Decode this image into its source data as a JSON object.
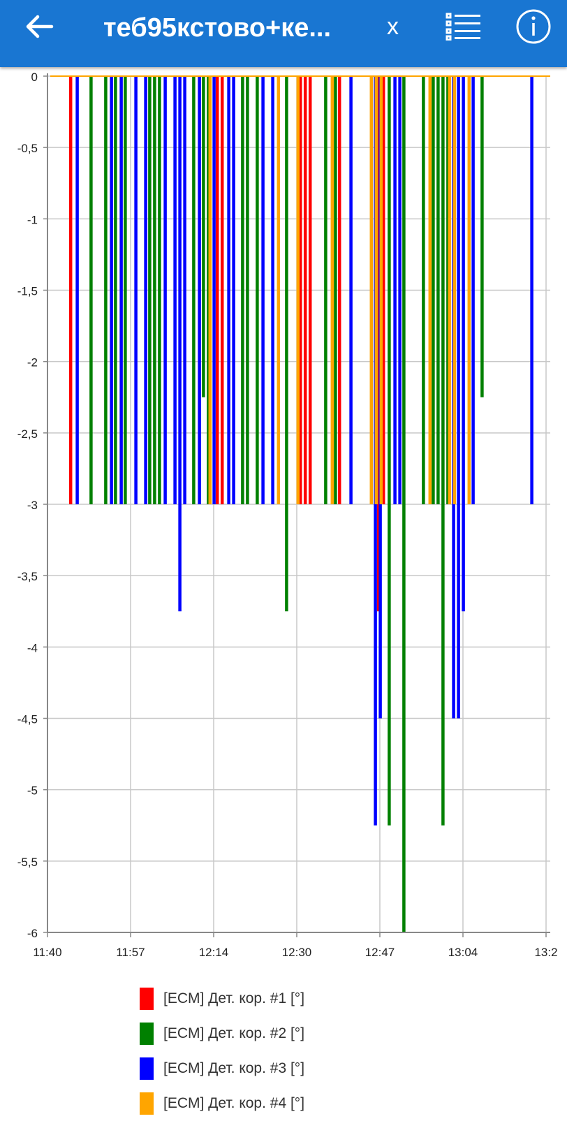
{
  "header": {
    "title": "теб95кстово+ке...",
    "back_icon": "arrow-left-icon",
    "close_label": "x",
    "list_icon": "list-checklist-icon",
    "info_icon": "info-circle-icon",
    "background_color": "#1976d2"
  },
  "chart_data": {
    "type": "bar",
    "title": "",
    "xlabel": "",
    "ylabel": "",
    "ylim": [
      -6,
      0
    ],
    "y_ticks": [
      "0",
      "-0,5",
      "-1",
      "-1,5",
      "-2",
      "-2,5",
      "-3",
      "-3,5",
      "-4",
      "-4,5",
      "-5",
      "-5,5",
      "-6"
    ],
    "x_ticks": [
      "11:40",
      "11:57",
      "12:14",
      "12:30",
      "12:47",
      "13:04",
      "13:2"
    ],
    "grid": true,
    "legend_position": "bottom",
    "series": [
      {
        "name": "[ECM] Дет. кор. #1 [°]",
        "color": "#ff0000",
        "points": [
          {
            "x": "11:45",
            "y": -3
          },
          {
            "x": "12:15",
            "y": -3
          },
          {
            "x": "12:16",
            "y": -3
          },
          {
            "x": "12:32",
            "y": -3
          },
          {
            "x": "12:33",
            "y": -3
          },
          {
            "x": "12:34",
            "y": -3
          },
          {
            "x": "12:40",
            "y": -3
          },
          {
            "x": "12:48",
            "y": -3.75
          },
          {
            "x": "12:49",
            "y": -3
          }
        ]
      },
      {
        "name": "[ECM] Дет. кор. #2 [°]",
        "color": "#008000",
        "points": [
          {
            "x": "11:49",
            "y": -3
          },
          {
            "x": "11:52",
            "y": -3
          },
          {
            "x": "11:54",
            "y": -3
          },
          {
            "x": "11:56",
            "y": -3
          },
          {
            "x": "12:01",
            "y": -3
          },
          {
            "x": "12:02",
            "y": -3
          },
          {
            "x": "12:03",
            "y": -3
          },
          {
            "x": "12:10",
            "y": -3
          },
          {
            "x": "12:12",
            "y": -2.25
          },
          {
            "x": "12:13",
            "y": -3
          },
          {
            "x": "12:20",
            "y": -3
          },
          {
            "x": "12:21",
            "y": -3
          },
          {
            "x": "12:23",
            "y": -3
          },
          {
            "x": "12:29",
            "y": -3.75
          },
          {
            "x": "12:37",
            "y": -3
          },
          {
            "x": "12:39",
            "y": -3
          },
          {
            "x": "12:50",
            "y": -5.25
          },
          {
            "x": "12:53",
            "y": -6
          },
          {
            "x": "12:57",
            "y": -3
          },
          {
            "x": "12:59",
            "y": -3
          },
          {
            "x": "13:00",
            "y": -3
          },
          {
            "x": "13:01",
            "y": -5.25
          },
          {
            "x": "13:02",
            "y": -3
          },
          {
            "x": "13:09",
            "y": -2.25
          }
        ]
      },
      {
        "name": "[ECM] Дет. кор. #3 [°]",
        "color": "#0000ff",
        "points": [
          {
            "x": "11:46",
            "y": -3
          },
          {
            "x": "11:53",
            "y": -3
          },
          {
            "x": "11:55",
            "y": -3
          },
          {
            "x": "11:58",
            "y": -3
          },
          {
            "x": "12:00",
            "y": -3
          },
          {
            "x": "12:04",
            "y": -3
          },
          {
            "x": "12:06",
            "y": -3
          },
          {
            "x": "12:07",
            "y": -3.75
          },
          {
            "x": "12:08",
            "y": -3
          },
          {
            "x": "12:11",
            "y": -3
          },
          {
            "x": "12:14",
            "y": -3
          },
          {
            "x": "12:17",
            "y": -3
          },
          {
            "x": "12:18",
            "y": -3
          },
          {
            "x": "12:24",
            "y": -3
          },
          {
            "x": "12:26",
            "y": -3
          },
          {
            "x": "12:42",
            "y": -3
          },
          {
            "x": "12:47",
            "y": -5.25
          },
          {
            "x": "12:48",
            "y": -4.5
          },
          {
            "x": "12:51",
            "y": -3
          },
          {
            "x": "12:52",
            "y": -3
          },
          {
            "x": "13:03",
            "y": -4.5
          },
          {
            "x": "13:04",
            "y": -4.5
          },
          {
            "x": "13:05",
            "y": -3.75
          },
          {
            "x": "13:07",
            "y": -3
          },
          {
            "x": "13:19",
            "y": -3
          }
        ]
      },
      {
        "name": "[ECM] Дет. кор. #4 [°]",
        "color": "#ffa500",
        "points": [
          {
            "x": "12:13",
            "y": -3
          },
          {
            "x": "12:27",
            "y": -3
          },
          {
            "x": "12:31",
            "y": -3
          },
          {
            "x": "12:38",
            "y": -3
          },
          {
            "x": "12:46",
            "y": -3
          },
          {
            "x": "12:47",
            "y": -3
          },
          {
            "x": "12:48",
            "y": -3
          },
          {
            "x": "12:58",
            "y": -3
          },
          {
            "x": "13:02",
            "y": -3
          },
          {
            "x": "13:03",
            "y": -3
          },
          {
            "x": "13:06",
            "y": -3
          }
        ]
      }
    ]
  }
}
